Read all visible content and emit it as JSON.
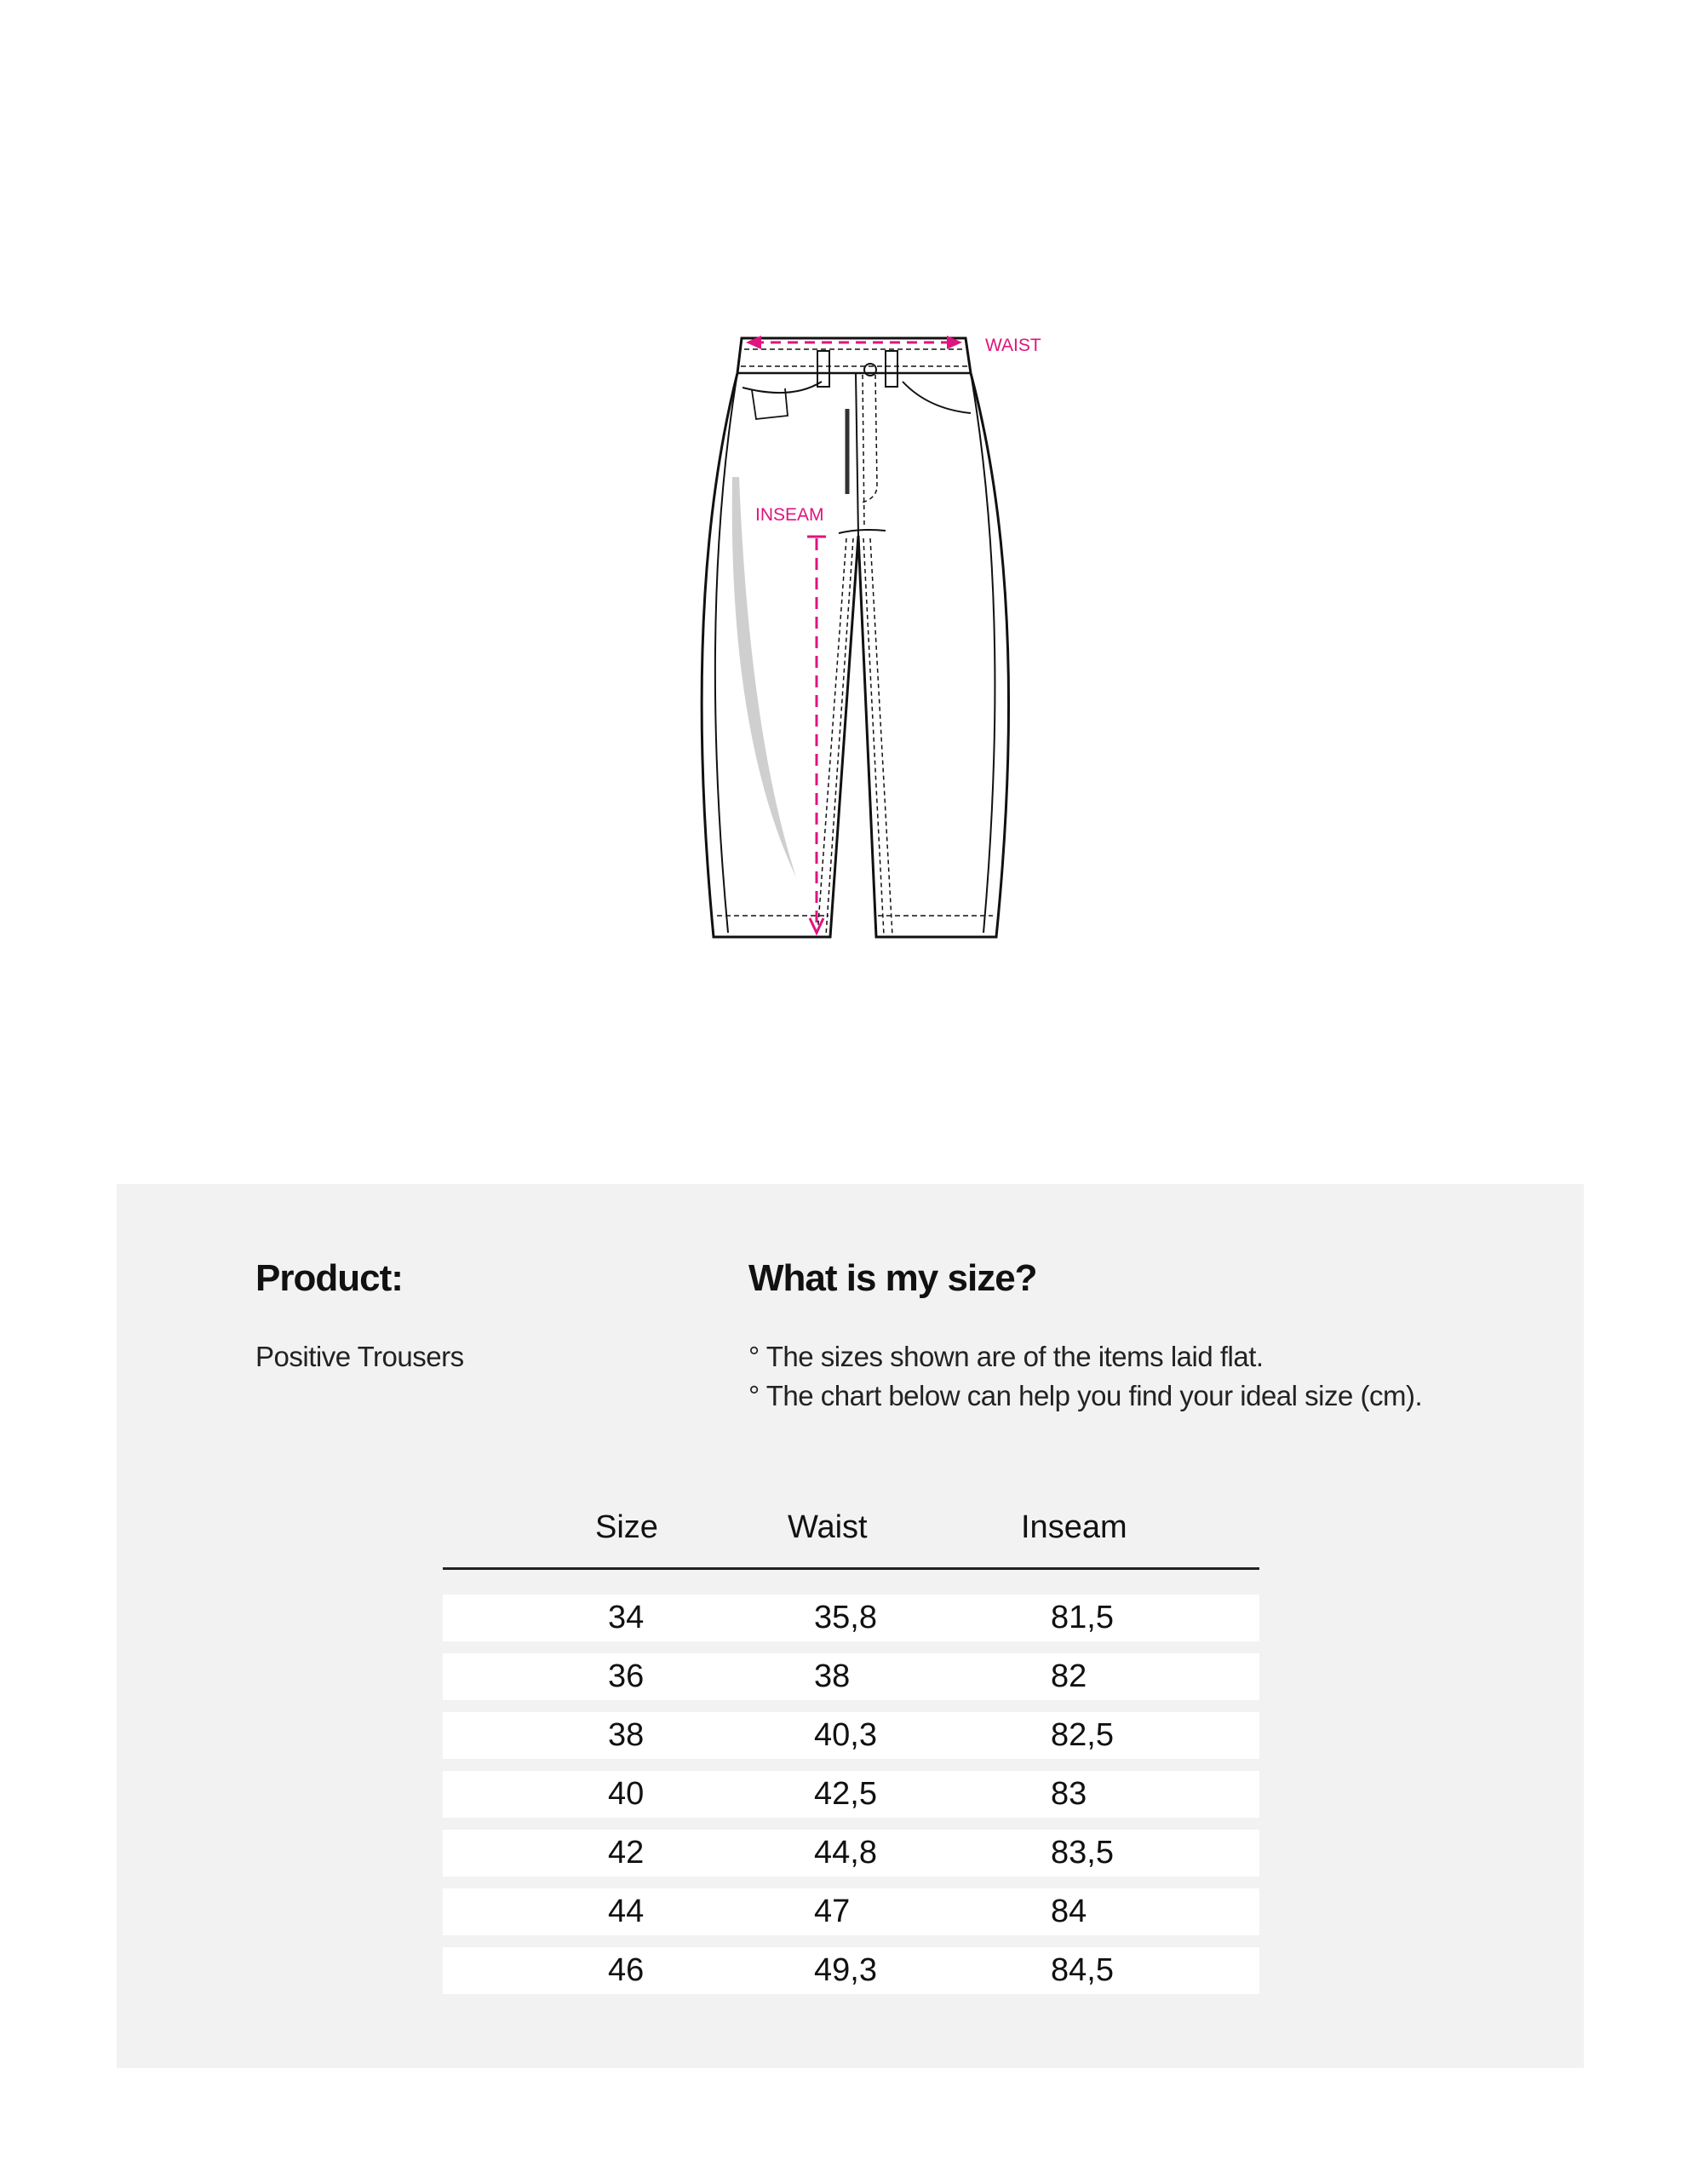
{
  "diagram": {
    "labels": {
      "waist": "WAIST",
      "inseam": "INSEAM"
    },
    "accent_color": "#e0137f"
  },
  "product": {
    "heading": "Product:",
    "name": "Positive Trousers"
  },
  "size_info": {
    "heading": "What is my size?",
    "notes": [
      "° The sizes shown are of the items laid flat.",
      "° The chart below can help you find your ideal size (cm)."
    ]
  },
  "table": {
    "headers": [
      "Size",
      "Waist",
      "Inseam"
    ],
    "rows": [
      [
        "34",
        "35,8",
        "81,5"
      ],
      [
        "36",
        "38",
        "82"
      ],
      [
        "38",
        "40,3",
        "82,5"
      ],
      [
        "40",
        "42,5",
        "83"
      ],
      [
        "42",
        "44,8",
        "83,5"
      ],
      [
        "44",
        "47",
        "84"
      ],
      [
        "46",
        "49,3",
        "84,5"
      ]
    ]
  }
}
